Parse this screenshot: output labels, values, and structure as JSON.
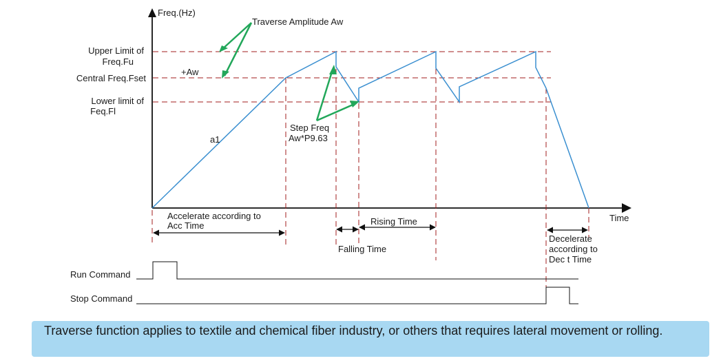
{
  "axis": {
    "y_label": "Freq.(Hz)",
    "x_label": "Time"
  },
  "levels": {
    "upper_line1": "Upper Limit of",
    "upper_line2": "Freq.Fu",
    "central": "Central Freq.Fset",
    "lower_line1": "Lower limit of",
    "lower_line2": "Feq.Fl",
    "plus_aw": "+Aw"
  },
  "annotations": {
    "traverse_amplitude": "Traverse Amplitude Aw",
    "a1": "a1",
    "step_line1": "Step Freq",
    "step_line2": "Aw*P9.63"
  },
  "timing": {
    "accel_line1": "Accelerate according to",
    "accel_line2": "Acc Time",
    "rising": "Rising Time",
    "falling": "Falling Time",
    "decel_line1": "Decelerate",
    "decel_line2": "according to",
    "decel_line3": "Dec t Time"
  },
  "signals": {
    "run": "Run Command",
    "stop": "Stop Command"
  },
  "info": {
    "text": "Traverse function applies to textile and chemical fiber industry, or others that requires lateral movement or rolling."
  },
  "colors": {
    "waveform": "#3a8fd0",
    "dashed": "#a01c1c",
    "pointer": "#22a75a",
    "info_bg": "#a8d8f2"
  }
}
